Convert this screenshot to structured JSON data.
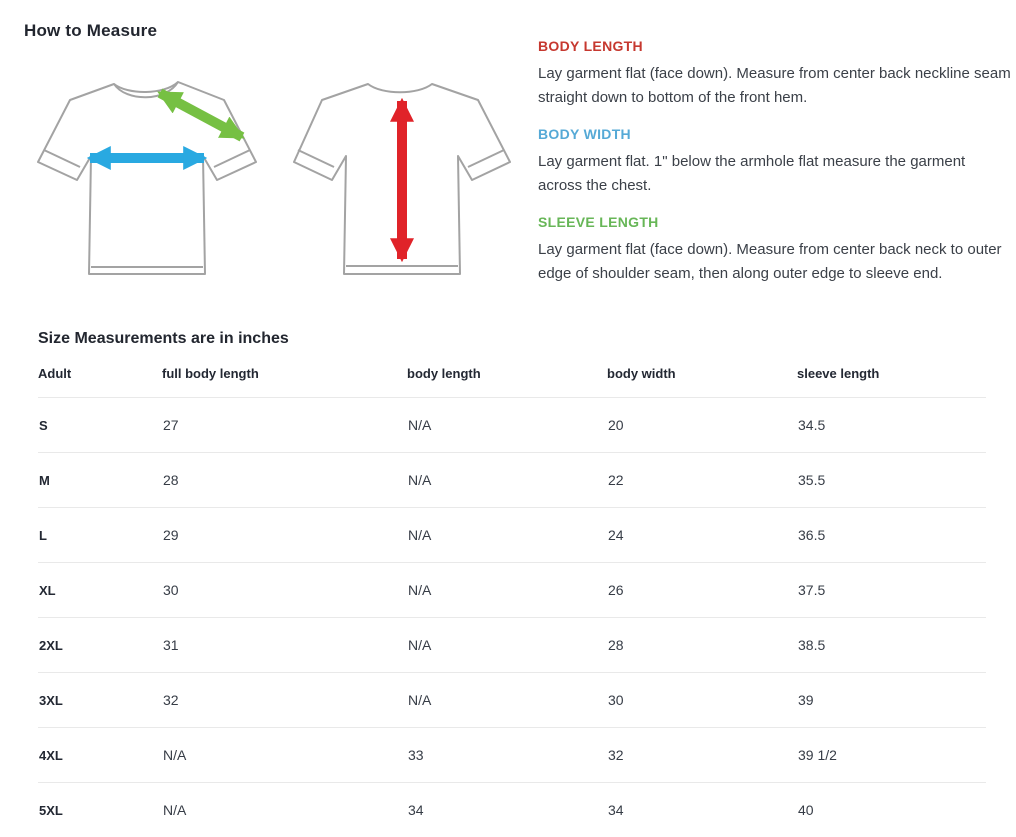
{
  "page": {
    "title": "How to Measure"
  },
  "instructions": [
    {
      "heading": "BODY LENGTH",
      "color": "#c6382f",
      "text": "Lay garment flat (face down). Measure from center back neckline seam straight down to bottom of the front hem."
    },
    {
      "heading": "BODY WIDTH",
      "color": "#55a9d6",
      "text": "Lay garment flat. 1\" below the armhole flat measure the garment across the chest."
    },
    {
      "heading": "SLEEVE LENGTH",
      "color": "#67b657",
      "text": "Lay garment flat (face down). Measure from center back neck to outer edge of shoulder seam, then along outer edge to sleeve end."
    }
  ],
  "diagram": {
    "outline_color": "#a3a3a3",
    "arrows": [
      {
        "name": "sleeve-length-arrow",
        "color": "#76c043"
      },
      {
        "name": "body-width-arrow",
        "color": "#29a9e1"
      },
      {
        "name": "body-length-arrow",
        "color": "#e02329"
      }
    ]
  },
  "size_table": {
    "title": "Size Measurements are in inches",
    "headers": [
      "Adult",
      "full body length",
      "body length",
      "body width",
      "sleeve length"
    ],
    "rows": [
      {
        "cells": [
          "S",
          "27",
          "N/A",
          "20",
          "34.5"
        ]
      },
      {
        "cells": [
          "M",
          "28",
          "N/A",
          "22",
          "35.5"
        ]
      },
      {
        "cells": [
          "L",
          "29",
          "N/A",
          "24",
          "36.5"
        ]
      },
      {
        "cells": [
          "XL",
          "30",
          "N/A",
          "26",
          "37.5"
        ]
      },
      {
        "cells": [
          "2XL",
          "31",
          "N/A",
          "28",
          "38.5"
        ]
      },
      {
        "cells": [
          "3XL",
          "32",
          "N/A",
          "30",
          "39"
        ]
      },
      {
        "cells": [
          "4XL",
          "N/A",
          "33",
          "32",
          "39 1/2"
        ]
      },
      {
        "cells": [
          "5XL",
          "N/A",
          "34",
          "34",
          "40"
        ]
      }
    ]
  }
}
